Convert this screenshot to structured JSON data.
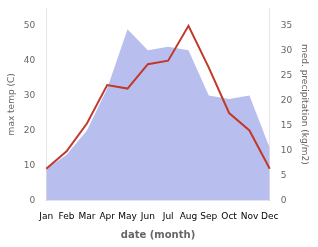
{
  "chart_data": {
    "type": "line",
    "xlabel": "date (month)",
    "ylabel": "max temp (C)",
    "y2label": "med. precipitation (kg/m2)",
    "categories": [
      "Jan",
      "Feb",
      "Mar",
      "Apr",
      "May",
      "Jun",
      "Jul",
      "Aug",
      "Sep",
      "Oct",
      "Nov",
      "Dec"
    ],
    "series": [
      {
        "type": "area",
        "color": "#b8bfee",
        "values": [
          9,
          13,
          20,
          32,
          49,
          43,
          44,
          43,
          30,
          29,
          30,
          15
        ]
      },
      {
        "type": "line",
        "color": "#c0392b",
        "values": [
          9,
          14,
          22,
          33,
          32,
          39,
          40,
          50,
          38,
          25,
          20,
          9
        ]
      }
    ],
    "ylim": [
      0,
      55
    ],
    "yticks": [
      0,
      10,
      20,
      30,
      40,
      50
    ],
    "y2lim": [
      0,
      38.5
    ],
    "y2ticks": [
      0,
      5,
      10,
      15,
      20,
      25,
      30,
      35
    ],
    "grid": false
  }
}
